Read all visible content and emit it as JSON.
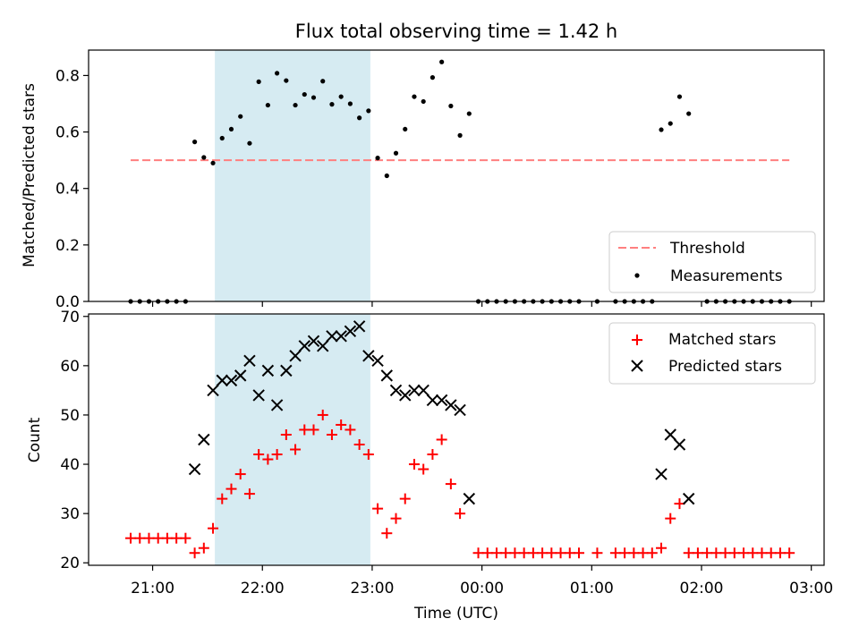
{
  "chart_data": [
    {
      "type": "scatter",
      "title": "Flux total observing time = 1.42 h",
      "ylabel": "Matched/Predicted stars",
      "xlim": [
        "20:25",
        "03:07"
      ],
      "ylim": [
        0,
        0.89
      ],
      "yticks": [
        "0.0",
        "0.2",
        "0.4",
        "0.6",
        "0.8"
      ],
      "highlight_span": {
        "start": "21:34",
        "end": "22:59",
        "color": "#add8e6"
      },
      "threshold": {
        "name": "Threshold",
        "value": 0.5,
        "x_start": "20:48",
        "x_end": "02:48",
        "color": "#ff7f7f",
        "style": "dashed"
      },
      "series": [
        {
          "name": "Measurements",
          "color": "#000000",
          "marker": "dot",
          "points": [
            [
              "20:48",
              0
            ],
            [
              "20:53",
              0
            ],
            [
              "20:58",
              0
            ],
            [
              "21:03",
              0
            ],
            [
              "21:08",
              0
            ],
            [
              "21:13",
              0
            ],
            [
              "21:18",
              0
            ],
            [
              "21:23",
              0.565
            ],
            [
              "21:28",
              0.51
            ],
            [
              "21:33",
              0.49
            ],
            [
              "21:38",
              0.578
            ],
            [
              "21:43",
              0.61
            ],
            [
              "21:48",
              0.655
            ],
            [
              "21:53",
              0.56
            ],
            [
              "21:58",
              0.778
            ],
            [
              "22:03",
              0.695
            ],
            [
              "22:08",
              0.808
            ],
            [
              "22:13",
              0.782
            ],
            [
              "22:18",
              0.695
            ],
            [
              "22:23",
              0.733
            ],
            [
              "22:28",
              0.722
            ],
            [
              "22:33",
              0.78
            ],
            [
              "22:38",
              0.698
            ],
            [
              "22:43",
              0.725
            ],
            [
              "22:48",
              0.7
            ],
            [
              "22:53",
              0.65
            ],
            [
              "22:58",
              0.675
            ],
            [
              "23:03",
              0.508
            ],
            [
              "23:08",
              0.445
            ],
            [
              "23:13",
              0.525
            ],
            [
              "23:18",
              0.61
            ],
            [
              "23:23",
              0.725
            ],
            [
              "23:28",
              0.708
            ],
            [
              "23:33",
              0.793
            ],
            [
              "23:38",
              0.848
            ],
            [
              "23:43",
              0.692
            ],
            [
              "23:48",
              0.588
            ],
            [
              "23:53",
              0.665
            ],
            [
              "23:58",
              0
            ],
            [
              "00:03",
              0
            ],
            [
              "00:08",
              0
            ],
            [
              "00:13",
              0
            ],
            [
              "00:18",
              0
            ],
            [
              "00:23",
              0
            ],
            [
              "00:28",
              0
            ],
            [
              "00:33",
              0
            ],
            [
              "00:38",
              0
            ],
            [
              "00:43",
              0
            ],
            [
              "00:48",
              0
            ],
            [
              "00:53",
              0
            ],
            [
              "01:03",
              0
            ],
            [
              "01:13",
              0
            ],
            [
              "01:18",
              0
            ],
            [
              "01:23",
              0
            ],
            [
              "01:28",
              0
            ],
            [
              "01:33",
              0
            ],
            [
              "01:38",
              0.608
            ],
            [
              "01:43",
              0.63
            ],
            [
              "01:48",
              0.725
            ],
            [
              "01:53",
              0.665
            ],
            [
              "02:03",
              0
            ],
            [
              "02:08",
              0
            ],
            [
              "02:13",
              0
            ],
            [
              "02:18",
              0
            ],
            [
              "02:23",
              0
            ],
            [
              "02:28",
              0
            ],
            [
              "02:33",
              0
            ],
            [
              "02:38",
              0
            ],
            [
              "02:43",
              0
            ],
            [
              "02:48",
              0
            ]
          ]
        }
      ],
      "legend": {
        "placement": "lower-right",
        "entries": [
          "Threshold",
          "Measurements"
        ]
      }
    },
    {
      "type": "scatter",
      "ylabel": "Count",
      "xlabel": "Time (UTC)",
      "xlim": [
        "20:25",
        "03:07"
      ],
      "ylim": [
        19.5,
        70.5
      ],
      "yticks": [
        "20",
        "30",
        "40",
        "50",
        "60",
        "70"
      ],
      "xticks": [
        "21:00",
        "22:00",
        "23:00",
        "00:00",
        "01:00",
        "02:00",
        "03:00"
      ],
      "highlight_span": {
        "start": "21:34",
        "end": "22:59",
        "color": "#add8e6"
      },
      "series": [
        {
          "name": "Matched stars",
          "color": "#ff0000",
          "marker": "plus",
          "points": [
            [
              "20:48",
              25
            ],
            [
              "20:53",
              25
            ],
            [
              "20:58",
              25
            ],
            [
              "21:03",
              25
            ],
            [
              "21:08",
              25
            ],
            [
              "21:13",
              25
            ],
            [
              "21:18",
              25
            ],
            [
              "21:23",
              22
            ],
            [
              "21:28",
              23
            ],
            [
              "21:33",
              27
            ],
            [
              "21:38",
              33
            ],
            [
              "21:43",
              35
            ],
            [
              "21:48",
              38
            ],
            [
              "21:53",
              34
            ],
            [
              "21:58",
              42
            ],
            [
              "22:03",
              41
            ],
            [
              "22:08",
              42
            ],
            [
              "22:13",
              46
            ],
            [
              "22:18",
              43
            ],
            [
              "22:23",
              47
            ],
            [
              "22:28",
              47
            ],
            [
              "22:33",
              50
            ],
            [
              "22:38",
              46
            ],
            [
              "22:43",
              48
            ],
            [
              "22:48",
              47
            ],
            [
              "22:53",
              44
            ],
            [
              "22:58",
              42
            ],
            [
              "23:03",
              31
            ],
            [
              "23:08",
              26
            ],
            [
              "23:13",
              29
            ],
            [
              "23:18",
              33
            ],
            [
              "23:23",
              40
            ],
            [
              "23:28",
              39
            ],
            [
              "23:33",
              42
            ],
            [
              "23:38",
              45
            ],
            [
              "23:43",
              36
            ],
            [
              "23:48",
              30
            ],
            [
              "23:58",
              22
            ],
            [
              "00:03",
              22
            ],
            [
              "00:08",
              22
            ],
            [
              "00:13",
              22
            ],
            [
              "00:18",
              22
            ],
            [
              "00:23",
              22
            ],
            [
              "00:28",
              22
            ],
            [
              "00:33",
              22
            ],
            [
              "00:38",
              22
            ],
            [
              "00:43",
              22
            ],
            [
              "00:48",
              22
            ],
            [
              "00:53",
              22
            ],
            [
              "01:03",
              22
            ],
            [
              "01:13",
              22
            ],
            [
              "01:18",
              22
            ],
            [
              "01:23",
              22
            ],
            [
              "01:28",
              22
            ],
            [
              "01:33",
              22
            ],
            [
              "01:38",
              23
            ],
            [
              "01:43",
              29
            ],
            [
              "01:48",
              32
            ],
            [
              "01:53",
              22
            ],
            [
              "01:58",
              22
            ],
            [
              "02:03",
              22
            ],
            [
              "02:08",
              22
            ],
            [
              "02:13",
              22
            ],
            [
              "02:18",
              22
            ],
            [
              "02:23",
              22
            ],
            [
              "02:28",
              22
            ],
            [
              "02:33",
              22
            ],
            [
              "02:38",
              22
            ],
            [
              "02:43",
              22
            ],
            [
              "02:48",
              22
            ]
          ]
        },
        {
          "name": "Predicted stars",
          "color": "#000000",
          "marker": "x",
          "points": [
            [
              "21:23",
              39
            ],
            [
              "21:28",
              45
            ],
            [
              "21:33",
              55
            ],
            [
              "21:38",
              57
            ],
            [
              "21:43",
              57
            ],
            [
              "21:48",
              58
            ],
            [
              "21:53",
              61
            ],
            [
              "21:58",
              54
            ],
            [
              "22:03",
              59
            ],
            [
              "22:08",
              52
            ],
            [
              "22:13",
              59
            ],
            [
              "22:18",
              62
            ],
            [
              "22:23",
              64
            ],
            [
              "22:28",
              65
            ],
            [
              "22:33",
              64
            ],
            [
              "22:38",
              66
            ],
            [
              "22:43",
              66
            ],
            [
              "22:48",
              67
            ],
            [
              "22:53",
              68
            ],
            [
              "22:58",
              62
            ],
            [
              "23:03",
              61
            ],
            [
              "23:08",
              58
            ],
            [
              "23:13",
              55
            ],
            [
              "23:18",
              54
            ],
            [
              "23:23",
              55
            ],
            [
              "23:28",
              55
            ],
            [
              "23:33",
              53
            ],
            [
              "23:38",
              53
            ],
            [
              "23:43",
              52
            ],
            [
              "23:48",
              51
            ],
            [
              "23:53",
              33
            ],
            [
              "01:38",
              38
            ],
            [
              "01:43",
              46
            ],
            [
              "01:48",
              44
            ],
            [
              "01:53",
              33
            ]
          ]
        }
      ],
      "legend": {
        "placement": "upper-right",
        "entries": [
          "Matched stars",
          "Predicted stars"
        ]
      }
    }
  ]
}
